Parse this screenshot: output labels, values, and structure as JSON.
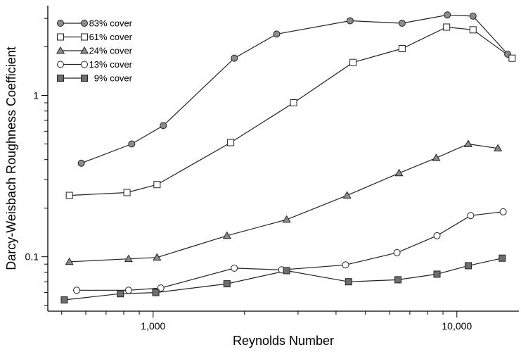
{
  "chart_data": {
    "type": "line",
    "title": "",
    "xlabel": "Reynolds Number",
    "ylabel": "Darcy-Weisbach Roughness Coefficient",
    "x_scale": "log",
    "y_scale": "log",
    "xlim": [
      450,
      16000
    ],
    "ylim": [
      0.046,
      3.6
    ],
    "x_ticks": [
      {
        "value": 1000,
        "label": "1,000"
      },
      {
        "value": 10000,
        "label": "10,000"
      }
    ],
    "y_ticks": [
      {
        "value": 0.1,
        "label": "0.1"
      },
      {
        "value": 1,
        "label": "1"
      }
    ],
    "grid": false,
    "legend_position": "top-left",
    "series": [
      {
        "name": "83% cover",
        "marker": "filled-circle",
        "color": "#8c8c8c",
        "x": [
          580,
          850,
          1080,
          1850,
          2550,
          4450,
          6600,
          9300,
          11300,
          14700
        ],
        "y": [
          0.38,
          0.5,
          0.65,
          1.7,
          2.4,
          2.9,
          2.8,
          3.15,
          3.1,
          1.8
        ]
      },
      {
        "name": "61% cover",
        "marker": "open-square",
        "color": "#ffffff",
        "x": [
          530,
          820,
          1030,
          1800,
          2900,
          4550,
          6600,
          9250,
          11300,
          15200
        ],
        "y": [
          0.24,
          0.25,
          0.28,
          0.51,
          0.9,
          1.6,
          1.95,
          2.65,
          2.55,
          1.7
        ]
      },
      {
        "name": "24% cover",
        "marker": "filled-triangle",
        "color": "#8c8c8c",
        "x": [
          530,
          830,
          1030,
          1750,
          2750,
          4350,
          6450,
          8550,
          10900,
          13650
        ],
        "y": [
          0.093,
          0.097,
          0.099,
          0.135,
          0.17,
          0.24,
          0.33,
          0.41,
          0.5,
          0.47
        ]
      },
      {
        "name": "13% cover",
        "marker": "open-circle",
        "color": "#ffffff",
        "x": [
          560,
          830,
          1060,
          1850,
          2650,
          4300,
          6350,
          8600,
          11100,
          14200
        ],
        "y": [
          0.062,
          0.062,
          0.064,
          0.085,
          0.083,
          0.089,
          0.106,
          0.135,
          0.18,
          0.19
        ]
      },
      {
        "name": "9% cover",
        "marker": "filled-square",
        "color": "#6e6e6e",
        "x": [
          510,
          780,
          1020,
          1750,
          2750,
          4400,
          6400,
          8600,
          10900,
          14100
        ],
        "y": [
          0.054,
          0.059,
          0.06,
          0.068,
          0.082,
          0.07,
          0.072,
          0.078,
          0.088,
          0.098
        ]
      }
    ]
  }
}
